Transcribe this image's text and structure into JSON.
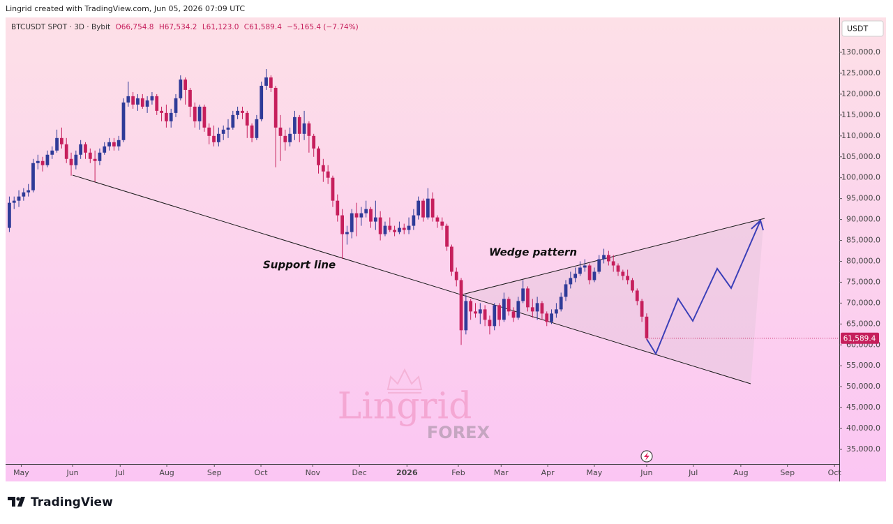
{
  "header": "Lingrid created with TradingView.com, Jun 05, 2026 07:09 UTC",
  "footer": {
    "brand": "TradingView"
  },
  "watermark": {
    "title": "Lingrid",
    "subtitle": "FOREX"
  },
  "chart_data": {
    "type": "candlestick",
    "legend": {
      "symbol": "BTCUSDT SPOT · 3D · Bybit",
      "ohlc": [
        "O66,754.8",
        "H67,534.2",
        "L61,123.0",
        "C61,589.4",
        "−5,165.4 (−7.74%)"
      ]
    },
    "currency": "USDT",
    "last_price_label": "61,589.4",
    "annotations": [
      "Support line",
      "Wedge pattern"
    ],
    "up_color": "#2f3b98",
    "down_color": "#c61f5c",
    "xlim": [
      -0.5,
      174.5
    ],
    "xticks": [
      {
        "value": 2.5,
        "label": "May"
      },
      {
        "value": 13.3,
        "label": "Jun"
      },
      {
        "value": 23.3,
        "label": "Jul"
      },
      {
        "value": 33.1,
        "label": "Aug"
      },
      {
        "value": 43.1,
        "label": "Sep"
      },
      {
        "value": 52.9,
        "label": "Oct"
      },
      {
        "value": 63.8,
        "label": "Nov"
      },
      {
        "value": 73.6,
        "label": "Dec"
      },
      {
        "value": 83.6,
        "label": "2026"
      },
      {
        "value": 94.4,
        "label": "Feb"
      },
      {
        "value": 103.4,
        "label": "Mar"
      },
      {
        "value": 113.2,
        "label": "Apr"
      },
      {
        "value": 123,
        "label": "May"
      },
      {
        "value": 134,
        "label": "Jun"
      },
      {
        "value": 143.8,
        "label": "Jul"
      },
      {
        "value": 153.8,
        "label": "Aug"
      },
      {
        "value": 163.6,
        "label": "Sep"
      },
      {
        "value": 173.5,
        "label": "Oct"
      }
    ],
    "ylim": [
      31500,
      138350
    ],
    "yticks": [
      {
        "value": 130000,
        "label": "130,000.0"
      },
      {
        "value": 125000,
        "label": "125,000.0"
      },
      {
        "value": 120000,
        "label": "120,000.0"
      },
      {
        "value": 115000,
        "label": "115,000.0"
      },
      {
        "value": 110000,
        "label": "110,000.0"
      },
      {
        "value": 105000,
        "label": "105,000.0"
      },
      {
        "value": 100000,
        "label": "100,000.0"
      },
      {
        "value": 95000,
        "label": "95,000.0"
      },
      {
        "value": 90000,
        "label": "90,000.0"
      },
      {
        "value": 85000,
        "label": "85,000.0"
      },
      {
        "value": 80000,
        "label": "80,000.0"
      },
      {
        "value": 75000,
        "label": "75,000.0"
      },
      {
        "value": 70000,
        "label": "70,000.0"
      },
      {
        "value": 65000,
        "label": "65,000.0"
      },
      {
        "value": 60000,
        "label": "60,000.0"
      },
      {
        "value": 55000,
        "label": "55,000.0"
      },
      {
        "value": 50000,
        "label": "50,000.0"
      },
      {
        "value": 45000,
        "label": "45,000.0"
      },
      {
        "value": 40000,
        "label": "40,000.0"
      },
      {
        "value": 35000,
        "label": "35,000.0"
      }
    ],
    "open": [
      88000,
      94000,
      94500,
      95500,
      96500,
      97000,
      103500,
      104000,
      103000,
      105500,
      106500,
      109500,
      108000,
      104500,
      103000,
      105500,
      108000,
      106000,
      104500,
      104000,
      106000,
      107500,
      108500,
      107500,
      109000,
      118000,
      119500,
      117500,
      119000,
      117000,
      118500,
      119500,
      116000,
      115500,
      113500,
      115500,
      119000,
      123500,
      121000,
      117000,
      113500,
      117000,
      112000,
      110000,
      108500,
      110500,
      111500,
      112000,
      115000,
      116000,
      115500,
      112500,
      109500,
      114000,
      122000,
      124000,
      121500,
      112000,
      110000,
      108500,
      110500,
      114500,
      110500,
      113000,
      110000,
      107000,
      103000,
      101500,
      100000,
      94500,
      91000,
      86500,
      87000,
      91500,
      90500,
      91500,
      92500,
      89500,
      90500,
      86500,
      88500,
      87500,
      87000,
      88000,
      87500,
      88500,
      91000,
      94500,
      90500,
      95000,
      90500,
      89500,
      88500,
      83500,
      77500,
      75500,
      63500,
      70500,
      68000,
      67500,
      68500,
      66000,
      64500,
      69500,
      66000,
      71000,
      68000,
      66500,
      70500,
      73500,
      69000,
      68000,
      70000,
      67500,
      65500,
      67500,
      68500,
      71500,
      74500,
      76000,
      77000,
      78500,
      79000,
      75500,
      77500,
      80500,
      81500,
      80000,
      79000,
      77500,
      76500,
      75500,
      73000,
      70500,
      66754.8
    ],
    "high": [
      95500,
      95500,
      97000,
      97500,
      98500,
      104500,
      105500,
      105000,
      106500,
      107500,
      111500,
      112000,
      109500,
      106000,
      106500,
      109000,
      108500,
      107000,
      106500,
      107000,
      108500,
      109500,
      109500,
      110000,
      119000,
      123000,
      120500,
      120000,
      120000,
      119500,
      120500,
      120000,
      117000,
      117500,
      116500,
      120000,
      124500,
      124000,
      121500,
      118000,
      117500,
      117500,
      113000,
      112500,
      112000,
      112500,
      114000,
      116000,
      117000,
      117000,
      116000,
      113000,
      115000,
      123000,
      126000,
      124500,
      122000,
      115000,
      111500,
      112000,
      116000,
      115000,
      116000,
      113500,
      110500,
      107500,
      104500,
      103000,
      100500,
      96000,
      92500,
      88500,
      92500,
      94000,
      93000,
      94500,
      93000,
      94500,
      92000,
      89500,
      90500,
      88500,
      89500,
      89000,
      90500,
      92500,
      95500,
      95000,
      97500,
      96500,
      91000,
      90500,
      89000,
      84000,
      78500,
      76000,
      72000,
      71000,
      70000,
      70000,
      69500,
      67000,
      70000,
      70000,
      72500,
      71500,
      69000,
      71500,
      75500,
      74000,
      71000,
      71500,
      70500,
      68000,
      68500,
      70000,
      72500,
      75500,
      77500,
      78500,
      80000,
      80500,
      79500,
      78500,
      81500,
      83000,
      82500,
      81500,
      79500,
      78000,
      78000,
      76000,
      73500,
      71000,
      67534.2
    ],
    "low": [
      87000,
      92500,
      93000,
      94500,
      95500,
      96500,
      102000,
      101500,
      102500,
      104500,
      106000,
      107000,
      103500,
      100500,
      102000,
      104500,
      104500,
      103500,
      99000,
      103000,
      105500,
      106500,
      106500,
      106500,
      108500,
      117000,
      116500,
      116000,
      116500,
      115500,
      117500,
      115000,
      113500,
      112000,
      112000,
      114500,
      118500,
      117500,
      114500,
      112000,
      111500,
      111000,
      108000,
      107500,
      107500,
      109000,
      109500,
      111500,
      114000,
      114000,
      109500,
      108500,
      109000,
      113500,
      121000,
      120500,
      102500,
      104000,
      106500,
      107500,
      109000,
      108500,
      109000,
      106000,
      105000,
      101000,
      99000,
      98500,
      93000,
      89500,
      80600,
      84000,
      85500,
      86000,
      88500,
      90500,
      88000,
      87500,
      85000,
      86000,
      87000,
      86000,
      86500,
      86500,
      86500,
      87500,
      90000,
      89500,
      90000,
      89500,
      88000,
      87500,
      82500,
      76500,
      74000,
      60000,
      62500,
      66000,
      66500,
      65000,
      64500,
      62500,
      63500,
      64500,
      65500,
      67000,
      65500,
      66000,
      70000,
      68000,
      66500,
      66000,
      66000,
      64500,
      65000,
      66500,
      68000,
      70500,
      73500,
      75000,
      76500,
      77500,
      74500,
      75000,
      77000,
      79500,
      79000,
      77500,
      76500,
      75500,
      74500,
      72500,
      69500,
      65500,
      61123
    ],
    "close": [
      94000,
      94500,
      95500,
      96500,
      97000,
      103500,
      104000,
      103000,
      105500,
      106500,
      109500,
      108000,
      104500,
      103000,
      105500,
      108000,
      106000,
      104500,
      104000,
      106000,
      107500,
      108500,
      107500,
      109000,
      118000,
      119500,
      117500,
      119000,
      117000,
      118500,
      119500,
      116000,
      115500,
      113500,
      115500,
      119000,
      123500,
      121000,
      117000,
      113500,
      117000,
      112000,
      110000,
      108500,
      110500,
      111500,
      112000,
      115000,
      116000,
      115500,
      112500,
      109500,
      114000,
      122000,
      124000,
      121500,
      112000,
      110000,
      108500,
      110500,
      114500,
      110500,
      113000,
      110000,
      107000,
      103000,
      101500,
      100000,
      94500,
      91000,
      86500,
      87000,
      91500,
      90500,
      91500,
      92500,
      89500,
      90500,
      86500,
      88500,
      87500,
      87000,
      88000,
      87500,
      88500,
      91000,
      94500,
      90500,
      95000,
      90500,
      89500,
      88500,
      83500,
      77500,
      75500,
      63500,
      70500,
      68000,
      67500,
      68500,
      66000,
      64500,
      69500,
      66000,
      71000,
      68000,
      66500,
      70500,
      73500,
      69000,
      68000,
      70000,
      67500,
      65500,
      67500,
      68500,
      71500,
      74500,
      76000,
      77000,
      78500,
      79000,
      75500,
      77500,
      80500,
      81500,
      80000,
      79000,
      77500,
      76500,
      75500,
      73000,
      70500,
      66754.8,
      61589.4
    ]
  }
}
